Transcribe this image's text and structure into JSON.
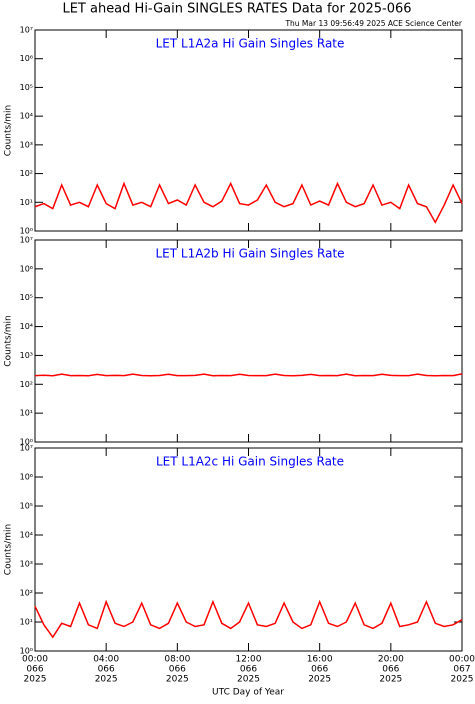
{
  "page": {
    "title": "LET ahead Hi-Gain SINGLES RATES Data for 2025-066",
    "timestamp": "Thu Mar 13 09:56:49 2025 ACE Science Center",
    "xlabel": "UTC Day of Year"
  },
  "chart_data": [
    {
      "type": "line",
      "title": "LET L1A2a Hi Gain Singles Rate",
      "ylabel": "Counts/min",
      "color": "#ff0000",
      "log_y": true,
      "x": [
        0,
        0.5,
        1,
        1.5,
        2,
        2.5,
        3,
        3.5,
        4,
        4.5,
        5,
        5.5,
        6,
        6.5,
        7,
        7.5,
        8,
        8.5,
        9,
        9.5,
        10,
        10.5,
        11,
        11.5,
        12,
        12.5,
        13,
        13.5,
        14,
        14.5,
        15,
        15.5,
        16,
        16.5,
        17,
        17.5,
        18,
        18.5,
        19,
        19.5,
        20,
        20.5,
        21,
        21.5,
        22,
        22.5,
        23,
        23.5,
        24
      ],
      "values": [
        7,
        9,
        6,
        40,
        8,
        10,
        7,
        40,
        9,
        6,
        45,
        8,
        10,
        7,
        40,
        9,
        12,
        8,
        40,
        10,
        7,
        11,
        45,
        9,
        8,
        12,
        40,
        10,
        7,
        9,
        40,
        8,
        11,
        8,
        45,
        10,
        7,
        9,
        40,
        8,
        10,
        6,
        40,
        9,
        7,
        2,
        8,
        40,
        9
      ],
      "xlim": [
        0,
        24
      ],
      "xticks": [
        0,
        4,
        8,
        12,
        16,
        20,
        24
      ],
      "ylim": [
        1,
        10000000
      ],
      "yticks": [
        {
          "value": 1,
          "label": "10⁰"
        },
        {
          "value": 10,
          "label": "10¹"
        },
        {
          "value": 100,
          "label": "10²"
        },
        {
          "value": 1000,
          "label": "10³"
        },
        {
          "value": 10000,
          "label": "10⁴"
        },
        {
          "value": 100000,
          "label": "10⁵"
        },
        {
          "value": 1000000,
          "label": "10⁶"
        },
        {
          "value": 10000000,
          "label": "10⁷"
        }
      ]
    },
    {
      "type": "line",
      "title": "LET L1A2b Hi Gain Singles Rate",
      "ylabel": "Counts/min",
      "color": "#ff0000",
      "log_y": true,
      "x": [
        0,
        0.5,
        1,
        1.5,
        2,
        2.5,
        3,
        3.5,
        4,
        4.5,
        5,
        5.5,
        6,
        6.5,
        7,
        7.5,
        8,
        8.5,
        9,
        9.5,
        10,
        10.5,
        11,
        11.5,
        12,
        12.5,
        13,
        13.5,
        14,
        14.5,
        15,
        15.5,
        16,
        16.5,
        17,
        17.5,
        18,
        18.5,
        19,
        19.5,
        20,
        20.5,
        21,
        21.5,
        22,
        22.5,
        23,
        23.5,
        24
      ],
      "values": [
        200,
        205,
        198,
        225,
        200,
        202,
        198,
        220,
        200,
        203,
        199,
        225,
        201,
        198,
        202,
        222,
        200,
        199,
        203,
        225,
        198,
        201,
        200,
        222,
        202,
        199,
        200,
        225,
        201,
        198,
        203,
        220,
        200,
        202,
        199,
        225,
        198,
        201,
        200,
        222,
        203,
        199,
        200,
        225,
        201,
        198,
        202,
        200,
        230
      ],
      "xlim": [
        0,
        24
      ],
      "xticks": [
        0,
        4,
        8,
        12,
        16,
        20,
        24
      ],
      "ylim": [
        1,
        10000000
      ],
      "yticks": [
        {
          "value": 1,
          "label": "10⁰"
        },
        {
          "value": 10,
          "label": "10¹"
        },
        {
          "value": 100,
          "label": "10²"
        },
        {
          "value": 1000,
          "label": "10³"
        },
        {
          "value": 10000,
          "label": "10⁴"
        },
        {
          "value": 100000,
          "label": "10⁵"
        },
        {
          "value": 1000000,
          "label": "10⁶"
        },
        {
          "value": 10000000,
          "label": "10⁷"
        }
      ]
    },
    {
      "type": "line",
      "title": "LET L1A2c Hi Gain Singles Rate",
      "ylabel": "Counts/min",
      "color": "#ff0000",
      "log_y": true,
      "x": [
        0,
        0.5,
        1,
        1.5,
        2,
        2.5,
        3,
        3.5,
        4,
        4.5,
        5,
        5.5,
        6,
        6.5,
        7,
        7.5,
        8,
        8.5,
        9,
        9.5,
        10,
        10.5,
        11,
        11.5,
        12,
        12.5,
        13,
        13.5,
        14,
        14.5,
        15,
        15.5,
        16,
        16.5,
        17,
        17.5,
        18,
        18.5,
        19,
        19.5,
        20,
        20.5,
        21,
        21.5,
        22,
        22.5,
        23,
        23.5,
        24
      ],
      "values": [
        35,
        8,
        3,
        9,
        7,
        45,
        8,
        6,
        50,
        9,
        7,
        10,
        45,
        8,
        6,
        9,
        45,
        10,
        7,
        8,
        50,
        9,
        6,
        10,
        45,
        8,
        7,
        9,
        45,
        10,
        6,
        8,
        50,
        9,
        7,
        10,
        45,
        8,
        6,
        9,
        45,
        7,
        8,
        10,
        50,
        9,
        7,
        8,
        12
      ],
      "xlim": [
        0,
        24
      ],
      "xticks": [
        {
          "value": 0,
          "label": [
            "00:00",
            "066",
            "2025"
          ]
        },
        {
          "value": 4,
          "label": [
            "04:00",
            "066",
            "2025"
          ]
        },
        {
          "value": 8,
          "label": [
            "08:00",
            "066",
            "2025"
          ]
        },
        {
          "value": 12,
          "label": [
            "12:00",
            "066",
            "2025"
          ]
        },
        {
          "value": 16,
          "label": [
            "16:00",
            "066",
            "2025"
          ]
        },
        {
          "value": 20,
          "label": [
            "20:00",
            "066",
            "2025"
          ]
        },
        {
          "value": 24,
          "label": [
            "00:00",
            "067",
            "2025"
          ]
        }
      ],
      "ylim": [
        1,
        10000000
      ],
      "yticks": [
        {
          "value": 1,
          "label": "10⁰"
        },
        {
          "value": 10,
          "label": "10¹"
        },
        {
          "value": 100,
          "label": "10²"
        },
        {
          "value": 1000,
          "label": "10³"
        },
        {
          "value": 10000,
          "label": "10⁴"
        },
        {
          "value": 100000,
          "label": "10⁵"
        },
        {
          "value": 1000000,
          "label": "10⁶"
        },
        {
          "value": 10000000,
          "label": "10⁷"
        }
      ]
    }
  ]
}
